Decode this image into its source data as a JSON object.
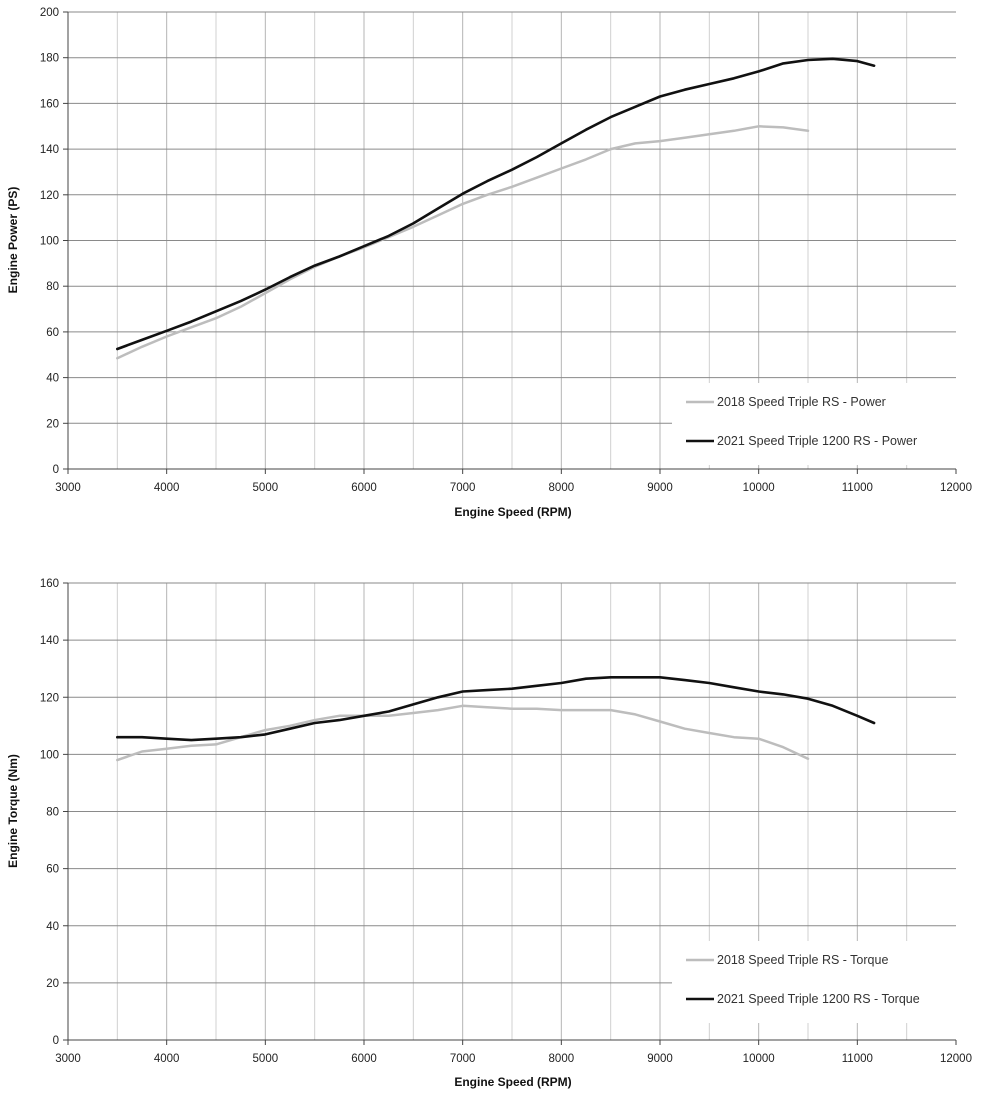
{
  "chart_data": [
    {
      "type": "line",
      "xlabel": "Engine Speed (RPM)",
      "ylabel": "Engine Power (PS)",
      "xlim": [
        3000,
        12000
      ],
      "ylim": [
        0,
        200
      ],
      "xticks": [
        3000,
        4000,
        5000,
        6000,
        7000,
        8000,
        9000,
        10000,
        11000,
        12000
      ],
      "yticks": [
        0,
        20,
        40,
        60,
        80,
        100,
        120,
        140,
        160,
        180,
        200
      ],
      "grid": true,
      "legend_position": "bottom-right",
      "series": [
        {
          "name": "2018 Speed Triple RS - Power",
          "color": "#bdbdbd",
          "x": [
            3500,
            3750,
            4000,
            4250,
            4500,
            4750,
            5000,
            5250,
            5500,
            5750,
            6000,
            6250,
            6500,
            6750,
            7000,
            7250,
            7500,
            7750,
            8000,
            8250,
            8500,
            8750,
            9000,
            9250,
            9500,
            9750,
            10000,
            10250,
            10500
          ],
          "y": [
            48.5,
            53.5,
            58,
            62,
            66,
            71,
            77,
            83,
            88.5,
            93,
            97,
            101.5,
            106,
            111,
            116,
            120,
            123.5,
            127.5,
            131.5,
            135.5,
            140,
            142.5,
            143.5,
            145,
            146.5,
            148,
            150,
            149.5,
            148
          ]
        },
        {
          "name": "2021 Speed Triple 1200 RS - Power",
          "color": "#111111",
          "x": [
            3500,
            3750,
            4000,
            4250,
            4500,
            4750,
            5000,
            5250,
            5500,
            5750,
            6000,
            6250,
            6500,
            6750,
            7000,
            7250,
            7500,
            7750,
            8000,
            8250,
            8500,
            8750,
            9000,
            9250,
            9500,
            9750,
            10000,
            10250,
            10500,
            10750,
            11000,
            11170
          ],
          "y": [
            52.5,
            56.5,
            60.5,
            64.5,
            69,
            73.5,
            78.5,
            84,
            89,
            93,
            97.5,
            102,
            107.5,
            114,
            120.5,
            126,
            131,
            136.5,
            142.5,
            148.5,
            154,
            158.5,
            163,
            166,
            168.5,
            171,
            174,
            177.5,
            179,
            179.5,
            178.5,
            176.5
          ]
        }
      ]
    },
    {
      "type": "line",
      "xlabel": "Engine Speed (RPM)",
      "ylabel": "Engine Torque (Nm)",
      "xlim": [
        3000,
        12000
      ],
      "ylim": [
        0,
        160
      ],
      "xticks": [
        3000,
        4000,
        5000,
        6000,
        7000,
        8000,
        9000,
        10000,
        11000,
        12000
      ],
      "yticks": [
        0,
        20,
        40,
        60,
        80,
        100,
        120,
        140,
        160
      ],
      "grid": true,
      "legend_position": "bottom-right",
      "series": [
        {
          "name": "2018 Speed Triple RS - Torque",
          "color": "#bdbdbd",
          "x": [
            3500,
            3750,
            4000,
            4250,
            4500,
            4750,
            5000,
            5250,
            5500,
            5750,
            6000,
            6250,
            6500,
            6750,
            7000,
            7250,
            7500,
            7750,
            8000,
            8250,
            8500,
            8750,
            9000,
            9250,
            9500,
            9750,
            10000,
            10250,
            10500
          ],
          "y": [
            98,
            101,
            102,
            103,
            103.5,
            106,
            108.5,
            110,
            112,
            113.5,
            113.5,
            113.5,
            114.5,
            115.5,
            117,
            116.5,
            116,
            116,
            115.5,
            115.5,
            115.5,
            114,
            111.5,
            109,
            107.5,
            106,
            105.5,
            102.5,
            98.5
          ]
        },
        {
          "name": "2021 Speed Triple 1200 RS - Torque",
          "color": "#111111",
          "x": [
            3500,
            3750,
            4000,
            4250,
            4500,
            4750,
            5000,
            5250,
            5500,
            5750,
            6000,
            6250,
            6500,
            6750,
            7000,
            7250,
            7500,
            7750,
            8000,
            8250,
            8500,
            8750,
            9000,
            9250,
            9500,
            9750,
            10000,
            10250,
            10500,
            10750,
            11000,
            11170
          ],
          "y": [
            106,
            106,
            105.5,
            105,
            105.5,
            106,
            107,
            109,
            111,
            112,
            113.5,
            115,
            117.5,
            120,
            122,
            122.5,
            123,
            124,
            125,
            126.5,
            127,
            127,
            127,
            126,
            125,
            123.5,
            122,
            121,
            119.5,
            117,
            113.5,
            111
          ]
        }
      ]
    }
  ]
}
